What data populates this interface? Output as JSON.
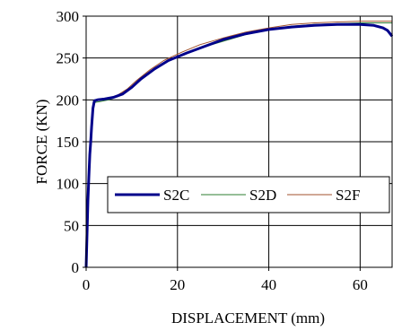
{
  "chart_data": {
    "type": "line",
    "xlabel": "DISPLACEMENT (mm)",
    "ylabel": "FORCE (KN)",
    "xlim": [
      0,
      67
    ],
    "ylim": [
      0,
      300
    ],
    "x_ticks": [
      0,
      20,
      40,
      60
    ],
    "y_ticks": [
      0,
      50,
      100,
      150,
      200,
      250,
      300
    ],
    "grid": true,
    "legend_placement": "center-right",
    "series": [
      {
        "name": "S2C",
        "color": "#00008b",
        "width": 3,
        "points": [
          [
            0,
            0
          ],
          [
            0.2,
            40
          ],
          [
            0.4,
            80
          ],
          [
            0.6,
            110
          ],
          [
            0.8,
            135
          ],
          [
            1.0,
            150
          ],
          [
            1.2,
            168
          ],
          [
            1.5,
            190
          ],
          [
            1.8,
            199
          ],
          [
            2.5,
            200
          ],
          [
            4,
            201
          ],
          [
            6,
            203
          ],
          [
            8,
            207
          ],
          [
            10,
            215
          ],
          [
            12,
            225
          ],
          [
            15,
            237
          ],
          [
            18,
            247
          ],
          [
            22,
            256
          ],
          [
            26,
            264
          ],
          [
            30,
            272
          ],
          [
            35,
            279
          ],
          [
            40,
            284
          ],
          [
            45,
            287
          ],
          [
            50,
            289
          ],
          [
            55,
            290
          ],
          [
            60,
            290
          ],
          [
            63,
            289
          ],
          [
            65,
            286
          ],
          [
            66,
            283
          ],
          [
            67,
            276
          ]
        ]
      },
      {
        "name": "S2D",
        "color": "#2e7d32",
        "width": 1,
        "points": [
          [
            0,
            0
          ],
          [
            0.2,
            45
          ],
          [
            0.5,
            95
          ],
          [
            0.8,
            140
          ],
          [
            1.2,
            170
          ],
          [
            1.6,
            195
          ],
          [
            2,
            197
          ],
          [
            3,
            198
          ],
          [
            5,
            200
          ],
          [
            7,
            204
          ],
          [
            9,
            210
          ],
          [
            11,
            220
          ],
          [
            14,
            233
          ],
          [
            17,
            244
          ],
          [
            21,
            254
          ],
          [
            25,
            262
          ],
          [
            30,
            270
          ],
          [
            35,
            278
          ],
          [
            40,
            284
          ],
          [
            45,
            288
          ],
          [
            50,
            290
          ],
          [
            55,
            291
          ],
          [
            60,
            292
          ],
          [
            65,
            292
          ],
          [
            67,
            292
          ]
        ]
      },
      {
        "name": "S2F",
        "color": "#a0522d",
        "width": 1,
        "points": [
          [
            0,
            0
          ],
          [
            0.2,
            50
          ],
          [
            0.5,
            100
          ],
          [
            0.8,
            145
          ],
          [
            1.2,
            175
          ],
          [
            1.6,
            198
          ],
          [
            2,
            200
          ],
          [
            3,
            200
          ],
          [
            5,
            202
          ],
          [
            7,
            206
          ],
          [
            9,
            213
          ],
          [
            11,
            223
          ],
          [
            14,
            236
          ],
          [
            17,
            247
          ],
          [
            21,
            257
          ],
          [
            25,
            266
          ],
          [
            30,
            274
          ],
          [
            35,
            281
          ],
          [
            40,
            286
          ],
          [
            45,
            290
          ],
          [
            50,
            292
          ],
          [
            55,
            293
          ],
          [
            60,
            294
          ],
          [
            65,
            294
          ],
          [
            67,
            294
          ]
        ]
      }
    ]
  }
}
